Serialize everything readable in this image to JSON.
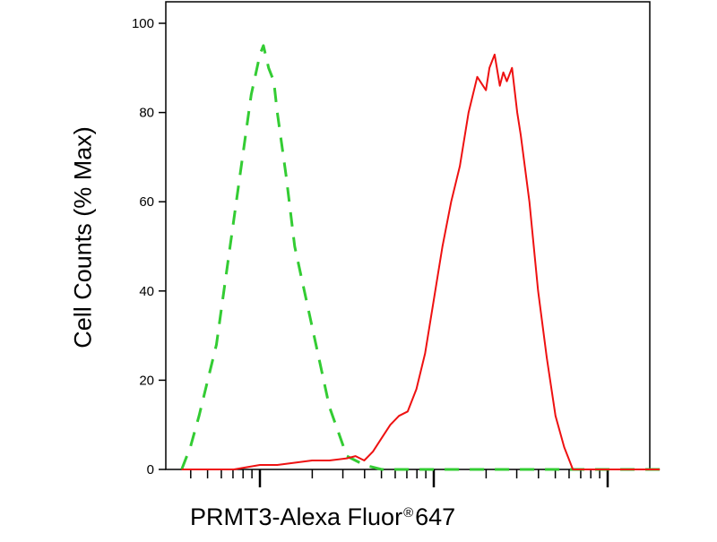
{
  "chart_data": {
    "type": "line",
    "title": "",
    "ylabel": "Cell Counts (% Max)",
    "xlabel": {
      "main": "PRMT3-Alexa Fluor",
      "registered": "®",
      "suffix": "647"
    },
    "ylim": [
      0,
      100
    ],
    "yticks": [
      "0",
      "20",
      "40",
      "60",
      "80",
      "100"
    ],
    "x_scale": "log",
    "xlim": [
      0.55,
      3.3
    ],
    "x_major_ticks": [
      1,
      2,
      3
    ],
    "x_tick_labels_visible": false,
    "grid": false,
    "legend": "none",
    "series": [
      {
        "line_style": "dashed",
        "color": "#33cc33",
        "x": [
          0.55,
          0.6,
          0.65,
          0.7,
          0.75,
          0.8,
          0.85,
          0.9,
          0.95,
          1.0,
          1.02,
          1.05,
          1.08,
          1.1,
          1.15,
          1.2,
          1.3,
          1.4,
          1.5,
          1.6,
          1.7,
          1.8,
          1.9,
          2.0,
          2.2,
          2.5,
          3.0,
          3.3
        ],
        "y": [
          0,
          5,
          12,
          20,
          28,
          42,
          56,
          70,
          84,
          93,
          95,
          90,
          87,
          80,
          66,
          50,
          32,
          14,
          3,
          1,
          0,
          0,
          0,
          0,
          0,
          0,
          0,
          0
        ]
      },
      {
        "line_style": "solid",
        "color": "#ee1111",
        "x": [
          0.55,
          0.7,
          0.85,
          1.0,
          1.1,
          1.2,
          1.3,
          1.4,
          1.5,
          1.55,
          1.6,
          1.65,
          1.7,
          1.75,
          1.8,
          1.85,
          1.9,
          1.95,
          2.0,
          2.05,
          2.1,
          2.15,
          2.2,
          2.25,
          2.3,
          2.32,
          2.35,
          2.38,
          2.4,
          2.42,
          2.45,
          2.48,
          2.5,
          2.55,
          2.6,
          2.65,
          2.7,
          2.75,
          2.8,
          2.85,
          2.9,
          3.0,
          3.2,
          3.3
        ],
        "y": [
          0,
          0,
          0,
          1,
          1,
          1.5,
          2,
          2,
          2.5,
          3,
          2,
          4,
          7,
          10,
          12,
          13,
          18,
          26,
          38,
          50,
          60,
          68,
          80,
          88,
          85,
          90,
          93,
          86,
          89,
          87,
          90,
          80,
          75,
          60,
          40,
          25,
          12,
          5,
          0,
          0,
          0,
          0,
          0,
          0
        ]
      }
    ]
  }
}
